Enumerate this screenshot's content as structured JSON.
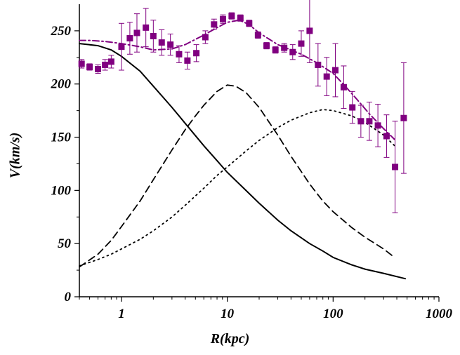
{
  "chart_data": {
    "type": "scatter",
    "xlabel": "R(kpc)",
    "ylabel": "V(km/s)",
    "xscale": "log",
    "xlim": [
      0.4,
      1000
    ],
    "ylim": [
      0,
      275
    ],
    "xticks": [
      1,
      10,
      100,
      1000
    ],
    "xtick_labels": [
      "1",
      "10",
      "100",
      "1000"
    ],
    "yticks": [
      0,
      50,
      100,
      150,
      200,
      250
    ],
    "ytick_labels": [
      "0",
      "50",
      "100",
      "150",
      "200",
      "250"
    ],
    "grid": false,
    "legend": "none",
    "colors": {
      "points": "#800080",
      "fit": "#800080",
      "curves": "#000000"
    },
    "points": {
      "x": [
        0.42,
        0.5,
        0.6,
        0.7,
        0.8,
        1.0,
        1.2,
        1.4,
        1.7,
        2.0,
        2.4,
        2.9,
        3.5,
        4.2,
        5.1,
        6.2,
        7.5,
        9.1,
        11.0,
        13.3,
        16.1,
        19.5,
        23.5,
        28.5,
        34.5,
        41.5,
        50.0,
        60.0,
        72.0,
        87.0,
        105.0,
        126.0,
        152.0,
        183.0,
        220.0,
        265.0,
        320.0,
        385.0,
        465.0
      ],
      "y": [
        219,
        216,
        214,
        218,
        221,
        235,
        243,
        248,
        253,
        245,
        239,
        237,
        228,
        222,
        229,
        244,
        256,
        261,
        264,
        262,
        257,
        246,
        236,
        232,
        234,
        230,
        238,
        250,
        218,
        207,
        213,
        197,
        178,
        165,
        165,
        161,
        151,
        122,
        168
      ],
      "err": [
        4,
        3,
        4,
        5,
        6,
        22,
        15,
        18,
        18,
        15,
        12,
        10,
        8,
        8,
        8,
        6,
        5,
        4,
        3,
        3,
        3,
        3,
        3,
        3,
        4,
        7,
        12,
        30,
        20,
        18,
        25,
        20,
        15,
        15,
        18,
        20,
        20,
        43,
        52
      ]
    },
    "series": [
      {
        "style": "dash-dot",
        "x": [
          0.4,
          0.5,
          0.7,
          1.0,
          1.5,
          2.0,
          3.0,
          4.0,
          6.0,
          8.0,
          10.0,
          13.0,
          16.0,
          20.0,
          25.0,
          30.0,
          40.0,
          50.0,
          70.0,
          100.0,
          130.0,
          170.0,
          220.0,
          300.0,
          380.0
        ],
        "y": [
          241,
          241,
          240,
          238,
          235,
          232,
          233,
          237,
          246,
          253,
          258,
          260,
          256,
          248,
          242,
          237,
          232,
          228,
          220,
          210,
          198,
          185,
          172,
          158,
          148
        ]
      },
      {
        "style": "solid",
        "x": [
          0.4,
          0.6,
          0.8,
          1.0,
          1.5,
          2.0,
          3.0,
          4.0,
          6.0,
          8.0,
          10.0,
          15.0,
          20.0,
          30.0,
          40.0,
          60.0,
          80.0,
          100.0,
          150.0,
          200.0,
          300.0,
          480.0
        ],
        "y": [
          238,
          236,
          232,
          226,
          212,
          198,
          178,
          163,
          142,
          128,
          117,
          100,
          88,
          72,
          62,
          50,
          43,
          37,
          30,
          26,
          22,
          17
        ]
      },
      {
        "style": "dashed",
        "x": [
          0.4,
          0.6,
          0.8,
          1.0,
          1.5,
          2.0,
          3.0,
          4.0,
          5.0,
          6.0,
          8.0,
          10.0,
          12.0,
          15.0,
          20.0,
          30.0,
          40.0,
          60.0,
          80.0,
          100.0,
          150.0,
          200.0,
          300.0,
          380.0
        ],
        "y": [
          28,
          40,
          53,
          66,
          90,
          110,
          138,
          157,
          170,
          180,
          193,
          199,
          198,
          192,
          178,
          152,
          132,
          106,
          90,
          80,
          65,
          56,
          45,
          37
        ]
      },
      {
        "style": "dotted",
        "x": [
          0.4,
          0.6,
          0.8,
          1.0,
          1.5,
          2.0,
          3.0,
          4.0,
          6.0,
          8.0,
          10.0,
          15.0,
          20.0,
          30.0,
          40.0,
          60.0,
          80.0,
          100.0,
          150.0,
          200.0,
          300.0,
          400.0
        ],
        "y": [
          29,
          35,
          40,
          45,
          54,
          62,
          75,
          86,
          102,
          114,
          122,
          137,
          147,
          159,
          166,
          173,
          176,
          175,
          170,
          164,
          152,
          140
        ]
      }
    ]
  }
}
